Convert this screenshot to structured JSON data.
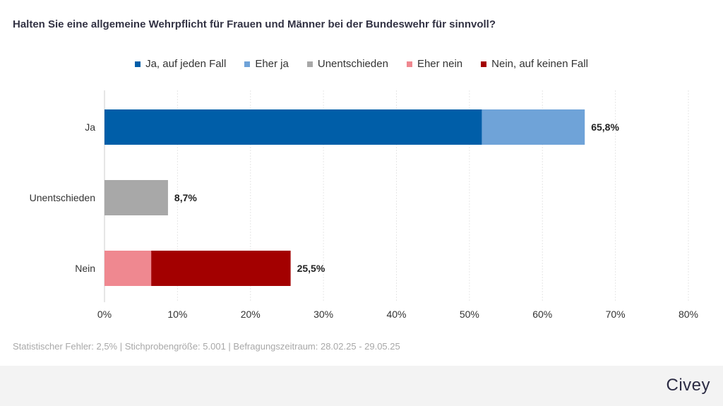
{
  "title": "Halten Sie eine allgemeine Wehrpflicht für Frauen und Männer bei der Bundeswehr für sinnvoll?",
  "footnote": "Statistischer Fehler: 2,5% | Stichprobengröße: 5.001 | Befragungszeitraum: 28.02.25 - 29.05.25",
  "logo": "Civey",
  "chart_data": {
    "type": "bar",
    "orientation": "horizontal",
    "stacked": true,
    "legend_position": "top",
    "grid": true,
    "xlim": [
      0,
      80
    ],
    "xticks": [
      "0%",
      "10%",
      "20%",
      "30%",
      "40%",
      "50%",
      "60%",
      "70%",
      "80%"
    ],
    "xtick_values": [
      0,
      10,
      20,
      30,
      40,
      50,
      60,
      70,
      80
    ],
    "categories": [
      "Ja",
      "Unentschieden",
      "Nein"
    ],
    "totals": [
      65.8,
      8.7,
      25.5
    ],
    "total_labels": [
      "65,8%",
      "8,7%",
      "25,5%"
    ],
    "series": [
      {
        "name": "Ja, auf jeden Fall",
        "color": "#005ea8",
        "values": [
          51.7,
          0,
          0
        ]
      },
      {
        "name": "Eher ja",
        "color": "#6fa3d8",
        "values": [
          14.1,
          0,
          0
        ]
      },
      {
        "name": "Unentschieden",
        "color": "#a8a8a8",
        "values": [
          0,
          8.7,
          0
        ]
      },
      {
        "name": "Eher nein",
        "color": "#ef8890",
        "values": [
          0,
          0,
          6.4
        ]
      },
      {
        "name": "Nein, auf keinen Fall",
        "color": "#a30000",
        "values": [
          0,
          0,
          19.1
        ]
      }
    ]
  }
}
